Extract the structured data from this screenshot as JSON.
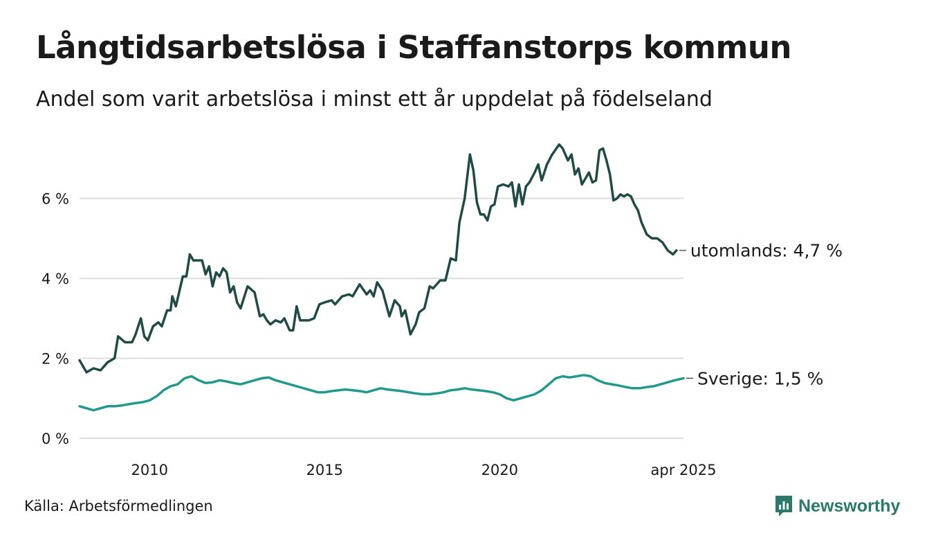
{
  "title": "Långtidsarbetslösa i Staffanstorps kommun",
  "subtitle": "Andel som varit arbetslösa i minst ett år uppdelat på födelseland",
  "source": "Källa: Arbetsförmedlingen",
  "brand": "Newsworthy",
  "colors": {
    "utomlands": "#1f4a46",
    "sverige": "#1f9a8a",
    "grid": "#dddddd",
    "brand": "#2a7a6b"
  },
  "chart_data": {
    "type": "line",
    "x_range": [
      2008.0,
      2025.25
    ],
    "ylim": [
      0,
      7.5
    ],
    "y_ticks": [
      0,
      2,
      4,
      6
    ],
    "y_tick_labels": [
      "0 %",
      "2 %",
      "4 %",
      "6 %"
    ],
    "x_ticks": [
      2010,
      2015,
      2020,
      2025.25
    ],
    "x_tick_labels": [
      "2010",
      "2015",
      "2020",
      "apr 2025"
    ],
    "grid": "horizontal",
    "series": [
      {
        "name": "utomlands",
        "end_label": "utomlands: 4,7 %",
        "color": "#1f4a46",
        "points": [
          [
            2008.0,
            1.95
          ],
          [
            2008.2,
            1.65
          ],
          [
            2008.4,
            1.75
          ],
          [
            2008.6,
            1.7
          ],
          [
            2008.8,
            1.9
          ],
          [
            2009.0,
            2.0
          ],
          [
            2009.1,
            2.55
          ],
          [
            2009.3,
            2.4
          ],
          [
            2009.5,
            2.4
          ],
          [
            2009.6,
            2.6
          ],
          [
            2009.75,
            3.0
          ],
          [
            2009.85,
            2.55
          ],
          [
            2009.95,
            2.45
          ],
          [
            2010.1,
            2.8
          ],
          [
            2010.25,
            2.9
          ],
          [
            2010.35,
            2.8
          ],
          [
            2010.5,
            3.2
          ],
          [
            2010.6,
            3.2
          ],
          [
            2010.65,
            3.55
          ],
          [
            2010.75,
            3.3
          ],
          [
            2010.95,
            4.05
          ],
          [
            2011.05,
            4.05
          ],
          [
            2011.15,
            4.6
          ],
          [
            2011.25,
            4.45
          ],
          [
            2011.5,
            4.45
          ],
          [
            2011.6,
            4.1
          ],
          [
            2011.7,
            4.3
          ],
          [
            2011.8,
            3.8
          ],
          [
            2011.9,
            4.15
          ],
          [
            2012.0,
            4.05
          ],
          [
            2012.1,
            4.25
          ],
          [
            2012.2,
            4.15
          ],
          [
            2012.3,
            3.65
          ],
          [
            2012.4,
            3.8
          ],
          [
            2012.5,
            3.4
          ],
          [
            2012.6,
            3.25
          ],
          [
            2012.8,
            3.8
          ],
          [
            2013.0,
            3.65
          ],
          [
            2013.15,
            3.05
          ],
          [
            2013.25,
            3.1
          ],
          [
            2013.35,
            2.95
          ],
          [
            2013.45,
            2.85
          ],
          [
            2013.6,
            2.95
          ],
          [
            2013.75,
            2.9
          ],
          [
            2013.85,
            3.0
          ],
          [
            2014.0,
            2.7
          ],
          [
            2014.1,
            2.7
          ],
          [
            2014.2,
            3.3
          ],
          [
            2014.3,
            2.95
          ],
          [
            2014.45,
            2.95
          ],
          [
            2014.55,
            2.95
          ],
          [
            2014.7,
            3.0
          ],
          [
            2014.85,
            3.35
          ],
          [
            2015.0,
            3.4
          ],
          [
            2015.2,
            3.45
          ],
          [
            2015.3,
            3.35
          ],
          [
            2015.5,
            3.55
          ],
          [
            2015.7,
            3.6
          ],
          [
            2015.8,
            3.55
          ],
          [
            2016.0,
            3.85
          ],
          [
            2016.2,
            3.6
          ],
          [
            2016.3,
            3.7
          ],
          [
            2016.4,
            3.55
          ],
          [
            2016.5,
            3.9
          ],
          [
            2016.65,
            3.7
          ],
          [
            2016.85,
            3.05
          ],
          [
            2017.0,
            3.45
          ],
          [
            2017.15,
            3.3
          ],
          [
            2017.2,
            3.05
          ],
          [
            2017.3,
            3.2
          ],
          [
            2017.45,
            2.6
          ],
          [
            2017.6,
            2.85
          ],
          [
            2017.7,
            3.15
          ],
          [
            2017.85,
            3.25
          ],
          [
            2018.0,
            3.8
          ],
          [
            2018.1,
            3.75
          ],
          [
            2018.3,
            3.95
          ],
          [
            2018.45,
            3.95
          ],
          [
            2018.6,
            4.5
          ],
          [
            2018.75,
            4.45
          ],
          [
            2018.85,
            5.4
          ],
          [
            2019.0,
            6.0
          ],
          [
            2019.15,
            7.1
          ],
          [
            2019.25,
            6.7
          ],
          [
            2019.35,
            5.9
          ],
          [
            2019.45,
            5.6
          ],
          [
            2019.55,
            5.6
          ],
          [
            2019.65,
            5.45
          ],
          [
            2019.75,
            5.8
          ],
          [
            2019.85,
            5.85
          ],
          [
            2019.95,
            6.3
          ],
          [
            2020.1,
            6.35
          ],
          [
            2020.25,
            6.3
          ],
          [
            2020.35,
            6.4
          ],
          [
            2020.45,
            5.8
          ],
          [
            2020.55,
            6.35
          ],
          [
            2020.65,
            5.85
          ],
          [
            2020.75,
            6.3
          ],
          [
            2020.85,
            6.4
          ],
          [
            2021.0,
            6.65
          ],
          [
            2021.1,
            6.85
          ],
          [
            2021.2,
            6.45
          ],
          [
            2021.35,
            6.85
          ],
          [
            2021.5,
            7.1
          ],
          [
            2021.7,
            7.35
          ],
          [
            2021.8,
            7.25
          ],
          [
            2021.95,
            6.95
          ],
          [
            2022.05,
            7.1
          ],
          [
            2022.15,
            6.6
          ],
          [
            2022.25,
            6.75
          ],
          [
            2022.35,
            6.35
          ],
          [
            2022.45,
            6.5
          ],
          [
            2022.55,
            6.65
          ],
          [
            2022.65,
            6.4
          ],
          [
            2022.75,
            6.45
          ],
          [
            2022.85,
            7.2
          ],
          [
            2022.95,
            7.25
          ],
          [
            2023.05,
            6.95
          ],
          [
            2023.15,
            6.6
          ],
          [
            2023.25,
            5.95
          ],
          [
            2023.35,
            6.0
          ],
          [
            2023.45,
            6.1
          ],
          [
            2023.55,
            6.05
          ],
          [
            2023.65,
            6.1
          ],
          [
            2023.75,
            6.05
          ],
          [
            2023.85,
            5.85
          ],
          [
            2023.95,
            5.7
          ],
          [
            2024.05,
            5.4
          ],
          [
            2024.2,
            5.1
          ],
          [
            2024.35,
            5.0
          ],
          [
            2024.5,
            5.0
          ],
          [
            2024.65,
            4.9
          ],
          [
            2024.8,
            4.7
          ],
          [
            2024.95,
            4.6
          ],
          [
            2025.05,
            4.7
          ]
        ]
      },
      {
        "name": "Sverige",
        "end_label": "Sverige: 1,5 %",
        "color": "#1f9a8a",
        "points": [
          [
            2008.0,
            0.8
          ],
          [
            2008.2,
            0.75
          ],
          [
            2008.4,
            0.7
          ],
          [
            2008.6,
            0.75
          ],
          [
            2008.8,
            0.8
          ],
          [
            2009.0,
            0.8
          ],
          [
            2009.2,
            0.82
          ],
          [
            2009.4,
            0.85
          ],
          [
            2009.6,
            0.88
          ],
          [
            2009.8,
            0.9
          ],
          [
            2010.0,
            0.95
          ],
          [
            2010.2,
            1.05
          ],
          [
            2010.4,
            1.2
          ],
          [
            2010.6,
            1.3
          ],
          [
            2010.8,
            1.35
          ],
          [
            2011.0,
            1.5
          ],
          [
            2011.2,
            1.55
          ],
          [
            2011.4,
            1.45
          ],
          [
            2011.6,
            1.38
          ],
          [
            2011.8,
            1.4
          ],
          [
            2012.0,
            1.45
          ],
          [
            2012.2,
            1.42
          ],
          [
            2012.4,
            1.38
          ],
          [
            2012.6,
            1.35
          ],
          [
            2012.8,
            1.4
          ],
          [
            2013.0,
            1.45
          ],
          [
            2013.2,
            1.5
          ],
          [
            2013.4,
            1.52
          ],
          [
            2013.6,
            1.45
          ],
          [
            2013.8,
            1.4
          ],
          [
            2014.0,
            1.35
          ],
          [
            2014.2,
            1.3
          ],
          [
            2014.4,
            1.25
          ],
          [
            2014.6,
            1.2
          ],
          [
            2014.8,
            1.15
          ],
          [
            2015.0,
            1.15
          ],
          [
            2015.2,
            1.18
          ],
          [
            2015.4,
            1.2
          ],
          [
            2015.6,
            1.22
          ],
          [
            2015.8,
            1.2
          ],
          [
            2016.0,
            1.18
          ],
          [
            2016.2,
            1.15
          ],
          [
            2016.4,
            1.2
          ],
          [
            2016.6,
            1.25
          ],
          [
            2016.8,
            1.22
          ],
          [
            2017.0,
            1.2
          ],
          [
            2017.2,
            1.18
          ],
          [
            2017.4,
            1.15
          ],
          [
            2017.6,
            1.12
          ],
          [
            2017.8,
            1.1
          ],
          [
            2018.0,
            1.1
          ],
          [
            2018.2,
            1.12
          ],
          [
            2018.4,
            1.15
          ],
          [
            2018.6,
            1.2
          ],
          [
            2018.8,
            1.22
          ],
          [
            2019.0,
            1.25
          ],
          [
            2019.2,
            1.22
          ],
          [
            2019.4,
            1.2
          ],
          [
            2019.6,
            1.18
          ],
          [
            2019.8,
            1.15
          ],
          [
            2020.0,
            1.1
          ],
          [
            2020.2,
            1.0
          ],
          [
            2020.4,
            0.95
          ],
          [
            2020.6,
            1.0
          ],
          [
            2020.8,
            1.05
          ],
          [
            2021.0,
            1.1
          ],
          [
            2021.2,
            1.2
          ],
          [
            2021.4,
            1.35
          ],
          [
            2021.6,
            1.5
          ],
          [
            2021.8,
            1.55
          ],
          [
            2022.0,
            1.52
          ],
          [
            2022.2,
            1.55
          ],
          [
            2022.4,
            1.58
          ],
          [
            2022.6,
            1.55
          ],
          [
            2022.8,
            1.45
          ],
          [
            2023.0,
            1.38
          ],
          [
            2023.2,
            1.35
          ],
          [
            2023.4,
            1.32
          ],
          [
            2023.6,
            1.28
          ],
          [
            2023.8,
            1.25
          ],
          [
            2024.0,
            1.25
          ],
          [
            2024.2,
            1.28
          ],
          [
            2024.4,
            1.3
          ],
          [
            2024.6,
            1.35
          ],
          [
            2024.8,
            1.4
          ],
          [
            2025.0,
            1.45
          ],
          [
            2025.25,
            1.5
          ]
        ]
      }
    ]
  }
}
